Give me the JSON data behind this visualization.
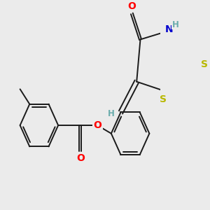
{
  "bg_color": "#ebebeb",
  "bond_color": "#1a1a1a",
  "lw": 1.4,
  "atom_colors": {
    "O": "#ff0000",
    "N": "#0000cd",
    "S": "#b8b800",
    "H": "#6aacac",
    "C": "#1a1a1a"
  },
  "figsize": [
    3.0,
    3.0
  ],
  "dpi": 100
}
